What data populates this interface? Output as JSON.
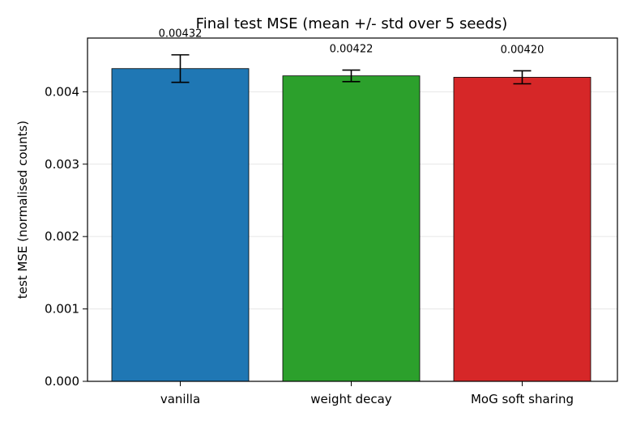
{
  "chart_data": {
    "type": "bar",
    "title": "Final test MSE  (mean +/- std over 5 seeds)",
    "xlabel": "",
    "ylabel": "test MSE (normalised counts)",
    "categories": [
      "vanilla",
      "weight decay",
      "MoG soft sharing"
    ],
    "values": [
      0.00432,
      0.00422,
      0.0042
    ],
    "errors": [
      0.00019,
      8e-05,
      9e-05
    ],
    "value_labels": [
      "0.00432",
      "0.00422",
      "0.00420"
    ],
    "colors": [
      "#1f77b4",
      "#2ca02c",
      "#d62728"
    ],
    "ylim": [
      0,
      0.004742
    ],
    "yticks": [
      0,
      0.001,
      0.002,
      0.003,
      0.004
    ],
    "ytick_labels": [
      "0.000",
      "0.001",
      "0.002",
      "0.003",
      "0.004"
    ],
    "grid": true,
    "legend": "none"
  }
}
